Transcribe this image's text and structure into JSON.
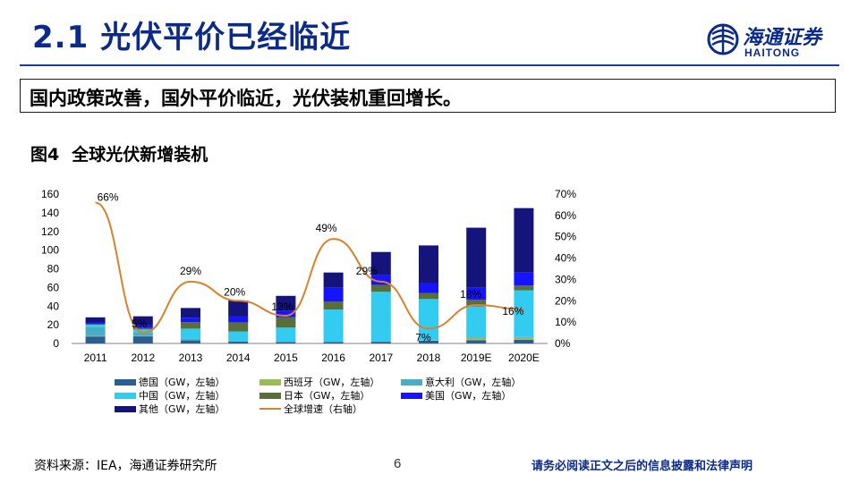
{
  "slide": {
    "title": "2.1 光伏平价已经临近",
    "summary": "国内政策改善，国外平价临近，光伏装机重回增长。",
    "figure_number": "图4",
    "figure_title": "全球光伏新增装机",
    "source": "资料来源：IEA，海通证券研究所",
    "page": "6",
    "disclaimer": "请务必阅读正文之后的信息披露和法律声明"
  },
  "logo": {
    "cn": "海通证券",
    "en": "HAITONG",
    "icon": "haitong-emblem-icon",
    "color": "#0b2a8a"
  },
  "chart_data": {
    "type": "bar",
    "stacked": true,
    "title": "全球光伏新增装机",
    "categories": [
      "2011",
      "2012",
      "2013",
      "2014",
      "2015",
      "2016",
      "2017",
      "2018",
      "2019E",
      "2020E"
    ],
    "left_axis": {
      "ylim": [
        0,
        160
      ],
      "ticks": [
        0,
        20,
        40,
        60,
        80,
        100,
        120,
        140,
        160
      ]
    },
    "right_axis": {
      "ylim": [
        0,
        0.7
      ],
      "ticks": [
        "0%",
        "10%",
        "20%",
        "30%",
        "40%",
        "50%",
        "60%",
        "70%"
      ]
    },
    "series": [
      {
        "name": "德国",
        "unit": "（GW，左轴）",
        "color": "#2b5f93",
        "values": [
          7.5,
          7.6,
          3.3,
          1.9,
          1.5,
          1.5,
          1.8,
          2.9,
          3.5,
          4.0
        ]
      },
      {
        "name": "西班牙",
        "unit": "（GW，左轴）",
        "color": "#9bbb59",
        "values": [
          0.5,
          0.3,
          0.2,
          0,
          0,
          0,
          0.1,
          0.3,
          2.5,
          2.0
        ]
      },
      {
        "name": "意大利",
        "unit": "（GW，左轴）",
        "color": "#4bacc6",
        "values": [
          9.3,
          3.6,
          1.4,
          0.4,
          0.3,
          0.4,
          0.4,
          0.4,
          0.7,
          1.0
        ]
      },
      {
        "name": "中国",
        "unit": "（GW，左轴）",
        "color": "#33ccf0",
        "values": [
          2.7,
          3.5,
          11,
          10.6,
          15.2,
          34.5,
          53,
          44,
          33,
          50
        ]
      },
      {
        "name": "日本",
        "unit": "（GW，左轴）",
        "color": "#5a6e3a",
        "values": [
          1.1,
          1.7,
          6.9,
          9.7,
          11,
          8.6,
          7.5,
          6.5,
          7,
          5
        ]
      },
      {
        "name": "美国",
        "unit": "（GW，左轴）",
        "color": "#1414ff",
        "values": [
          1.9,
          3.4,
          4.8,
          6.2,
          7.3,
          14.7,
          10.6,
          10.6,
          13,
          14
        ]
      },
      {
        "name": "其他",
        "unit": "（GW，左轴）",
        "color": "#14147a",
        "values": [
          5,
          9,
          10.4,
          17.2,
          15.7,
          16.3,
          24.6,
          40.3,
          64.3,
          69
        ]
      }
    ],
    "line": {
      "name": "全球增速",
      "unit": "（右轴）",
      "axis": "right",
      "color": "#d9822b",
      "values": [
        0.66,
        0.05,
        0.29,
        0.2,
        0.13,
        0.49,
        0.29,
        0.07,
        0.18,
        0.16
      ],
      "labels": [
        "66%",
        "5%",
        "29%",
        "20%",
        "13%",
        "49%",
        "29%",
        "7%",
        "18%",
        "16%"
      ]
    }
  }
}
